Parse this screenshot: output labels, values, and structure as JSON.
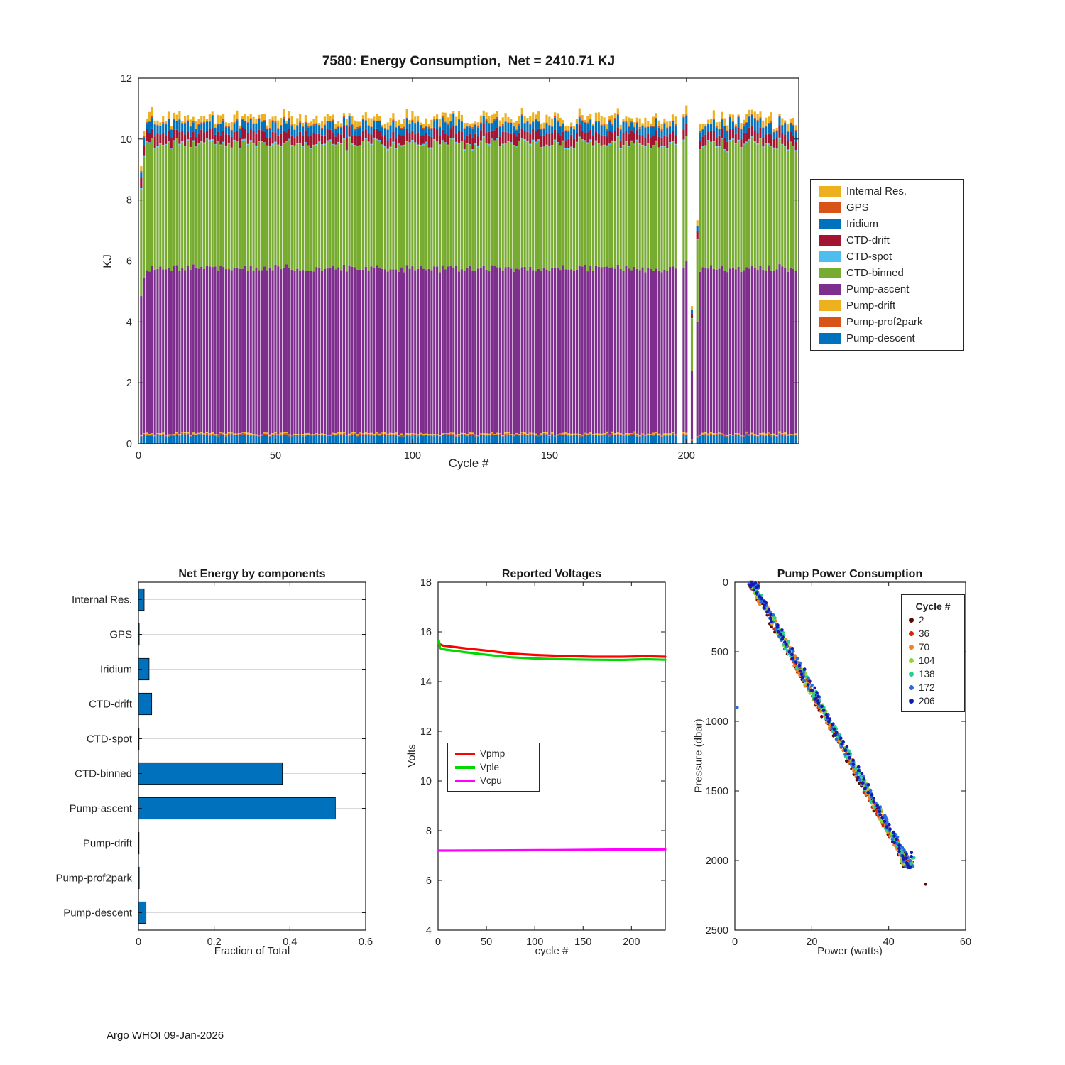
{
  "figure": {
    "footer": "Argo WHOI 09-Jan-2026",
    "bg": "#ffffff",
    "axis_color": "#1a1a1a",
    "grid_color": "#d9d9d9"
  },
  "chart_data": [
    {
      "type": "bar",
      "stacked": true,
      "title": "7580: Energy Consumption,  Net = 2410.71 KJ",
      "float_id": "7580",
      "net_kj": 2410.71,
      "xlabel": "Cycle #",
      "ylabel": "KJ",
      "xlim": [
        0,
        241
      ],
      "ylim": [
        0,
        12
      ],
      "xticks": [
        0,
        50,
        100,
        150,
        200
      ],
      "yticks": [
        0,
        2,
        4,
        6,
        8,
        10,
        12
      ],
      "n_cycles": 240,
      "legend": [
        "Internal Res.",
        "GPS",
        "Iridium",
        "CTD-drift",
        "CTD-spot",
        "CTD-binned",
        "Pump-ascent",
        "Pump-drift",
        "Pump-prof2park",
        "Pump-descent"
      ],
      "series": [
        {
          "name": "Internal Res.",
          "color": "#EDB120",
          "mean_kj": 0.18,
          "var_kj": 0.12
        },
        {
          "name": "GPS",
          "color": "#D95319",
          "mean_kj": 0.03,
          "var_kj": 0.02
        },
        {
          "name": "Iridium",
          "color": "#0072BD",
          "mean_kj": 0.3,
          "var_kj": 0.1
        },
        {
          "name": "CTD-drift",
          "color": "#A2142F",
          "mean_kj": 0.33,
          "var_kj": 0.08
        },
        {
          "name": "CTD-spot",
          "color": "#4DBEEE",
          "mean_kj": 0.03,
          "var_kj": 0.02
        },
        {
          "name": "CTD-binned",
          "color": "#77AC30",
          "mean_kj": 4.08,
          "var_kj": 0.15
        },
        {
          "name": "Pump-ascent",
          "color": "#7E2F8E",
          "mean_kj": 5.42,
          "var_kj": 0.1
        },
        {
          "name": "Pump-drift",
          "color": "#EDB120",
          "mean_kj": 0.03,
          "var_kj": 0.02
        },
        {
          "name": "Pump-prof2park",
          "color": "#D95319",
          "mean_kj": 0.03,
          "var_kj": 0.02
        },
        {
          "name": "Pump-descent",
          "color": "#0072BD",
          "mean_kj": 0.28,
          "var_kj": 0.04
        }
      ],
      "stack_order_bottom_to_top": [
        "Pump-descent",
        "Pump-prof2park",
        "Pump-drift",
        "Pump-ascent",
        "CTD-binned",
        "CTD-spot",
        "CTD-drift",
        "Iridium",
        "GPS",
        "Internal Res."
      ],
      "cycle_scale_anomalies": {
        "1": 0.84,
        "2": 0.95,
        "197": 0,
        "198": 0,
        "200": 1.03,
        "201": 0,
        "202": 0.42,
        "203": 0,
        "204": 0.68
      }
    },
    {
      "type": "bar-horizontal",
      "title": "Net Energy by components",
      "xlabel": "Fraction of Total",
      "categories": [
        "Internal Res.",
        "GPS",
        "Iridium",
        "CTD-drift",
        "CTD-spot",
        "CTD-binned",
        "Pump-ascent",
        "Pump-drift",
        "Pump-prof2park",
        "Pump-descent"
      ],
      "values": [
        0.015,
        0.002,
        0.028,
        0.035,
        0.001,
        0.38,
        0.52,
        0.001,
        0.002,
        0.02
      ],
      "xlim": [
        0,
        0.6
      ],
      "xticks": [
        0,
        0.2,
        0.4,
        0.6
      ],
      "bar_color": "#0072BD"
    },
    {
      "type": "line",
      "title": "Reported Voltages",
      "xlabel": "cycle #",
      "ylabel": "Volts",
      "xlim": [
        0,
        235
      ],
      "ylim": [
        4,
        18
      ],
      "xticks": [
        0,
        50,
        100,
        150,
        200
      ],
      "yticks": [
        4,
        6,
        8,
        10,
        12,
        14,
        16,
        18
      ],
      "series": [
        {
          "name": "Vpmp",
          "color": "#ff0000",
          "x": [
            1,
            5,
            15,
            30,
            50,
            75,
            100,
            130,
            160,
            190,
            215,
            235
          ],
          "y": [
            15.52,
            15.45,
            15.4,
            15.33,
            15.25,
            15.13,
            15.07,
            15.03,
            15.0,
            15.0,
            15.02,
            15.0
          ]
        },
        {
          "name": "Vple",
          "color": "#00d800",
          "x": [
            1,
            2,
            5,
            15,
            30,
            50,
            75,
            100,
            130,
            160,
            190,
            215,
            235
          ],
          "y": [
            15.62,
            15.35,
            15.3,
            15.25,
            15.17,
            15.08,
            14.98,
            14.93,
            14.9,
            14.88,
            14.87,
            14.9,
            14.88
          ]
        },
        {
          "name": "Vcpu",
          "color": "#ff00ff",
          "x": [
            1,
            60,
            120,
            180,
            235
          ],
          "y": [
            7.2,
            7.21,
            7.22,
            7.24,
            7.25
          ]
        }
      ]
    },
    {
      "type": "scatter",
      "title": "Pump Power Consumption",
      "xlabel": "Power (watts)",
      "ylabel": "Pressure (dbar)",
      "xlim": [
        0,
        60
      ],
      "ylim": [
        0,
        2500
      ],
      "y_reversed": true,
      "xticks": [
        0,
        20,
        40,
        60
      ],
      "yticks": [
        0,
        500,
        1000,
        1500,
        2000,
        2500
      ],
      "legend_title": "Cycle #",
      "groups": [
        {
          "cycle": 2,
          "color": "#5C0A06"
        },
        {
          "cycle": 36,
          "color": "#D92405"
        },
        {
          "cycle": 70,
          "color": "#EE8422"
        },
        {
          "cycle": 104,
          "color": "#8CD636"
        },
        {
          "cycle": 138,
          "color": "#2BCB96"
        },
        {
          "cycle": 172,
          "color": "#2B6BE0"
        },
        {
          "cycle": 206,
          "color": "#151BAC"
        }
      ],
      "trend": {
        "power_at_surface": 4.3,
        "power_at_deep": 45.6,
        "deep_pressure": 2050
      },
      "outliers": [
        {
          "cycle": 2,
          "power": 49.6,
          "pressure": 2170
        },
        {
          "cycle": 172,
          "power": 0.6,
          "pressure": 900
        }
      ]
    }
  ]
}
